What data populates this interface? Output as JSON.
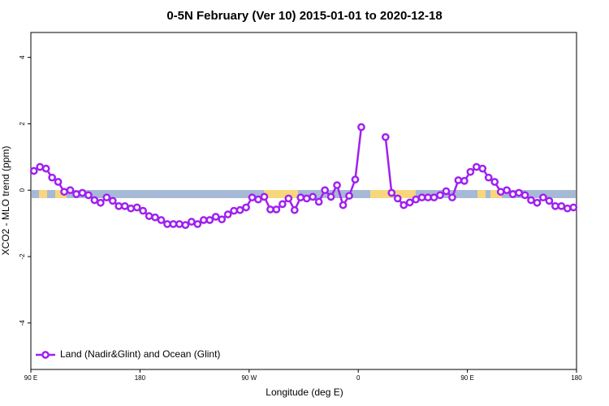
{
  "chart_data": {
    "type": "line",
    "title": "0-5N February (Ver 10)   2015-01-01 to 2020-12-18",
    "xlabel": "Longitude (deg E)",
    "ylabel": "XCO2 - MLO trend (ppm)",
    "xlim": [
      90,
      540
    ],
    "ylim": [
      -5.4,
      4.75
    ],
    "xticks": [
      {
        "value": 90,
        "label": "90 E"
      },
      180,
      {
        "value": 270,
        "label": "90 W"
      },
      {
        "value": 360,
        "label": "0"
      },
      {
        "value": 450,
        "label": "90 E"
      },
      {
        "value": 540,
        "label": "180"
      }
    ],
    "yticks": [
      -4,
      -2,
      0,
      2,
      4
    ],
    "legend": "bottom-left",
    "x": [
      92.5,
      97.5,
      102.5,
      107.5,
      112.5,
      117.5,
      122.5,
      127.5,
      132.5,
      137.5,
      142.5,
      147.5,
      152.5,
      157.5,
      162.5,
      167.5,
      172.5,
      177.5,
      182.5,
      187.5,
      192.5,
      197.5,
      202.5,
      207.5,
      212.5,
      217.5,
      222.5,
      227.5,
      232.5,
      237.5,
      242.5,
      247.5,
      252.5,
      257.5,
      262.5,
      267.5,
      272.5,
      277.5,
      282.5,
      287.5,
      292.5,
      297.5,
      302.5,
      307.5,
      312.5,
      317.5,
      322.5,
      327.5,
      332.5,
      337.5,
      342.5,
      347.5,
      352.5,
      357.5,
      362.5,
      367.5,
      372.5,
      377.5,
      382.5,
      387.5,
      392.5,
      397.5,
      402.5,
      407.5,
      412.5,
      417.5,
      422.5,
      427.5,
      432.5,
      437.5,
      442.5,
      447.5,
      452.5,
      457.5,
      462.5,
      467.5,
      472.5,
      477.5,
      482.5,
      487.5,
      492.5,
      497.5,
      502.5,
      507.5,
      512.5,
      517.5,
      522.5,
      527.5,
      532.5,
      537.5
    ],
    "series": [
      {
        "name": "Land (Nadir&Glint) and Ocean (Glint)",
        "color": "#a020f0",
        "values": [
          0.58,
          0.7,
          0.65,
          0.38,
          0.25,
          -0.05,
          0,
          -0.12,
          -0.08,
          -0.15,
          -0.3,
          -0.38,
          -0.22,
          -0.32,
          -0.48,
          -0.48,
          -0.55,
          -0.52,
          -0.62,
          -0.78,
          -0.82,
          -0.9,
          -1.02,
          -1.02,
          -1.02,
          -1.05,
          -0.95,
          -1.02,
          -0.9,
          -0.9,
          -0.8,
          -0.88,
          -0.73,
          -0.62,
          -0.6,
          -0.52,
          -0.22,
          -0.28,
          -0.2,
          -0.58,
          -0.58,
          -0.42,
          -0.25,
          -0.6,
          -0.22,
          -0.25,
          -0.2,
          -0.35,
          0,
          -0.2,
          0.15,
          -0.45,
          -0.17,
          0.32,
          1.9,
          null,
          null,
          null,
          1.6,
          -0.08,
          -0.25,
          -0.45,
          -0.37,
          -0.28,
          -0.22,
          -0.22,
          -0.22,
          -0.15,
          -0.03,
          -0.22,
          0.3,
          0.28,
          0.55,
          0.7,
          0.65,
          0.38,
          0.25,
          -0.05,
          0,
          -0.12,
          -0.08,
          -0.15,
          -0.3,
          -0.38,
          -0.22,
          -0.32,
          -0.48,
          -0.48,
          -0.55,
          -0.52
        ]
      }
    ]
  }
}
